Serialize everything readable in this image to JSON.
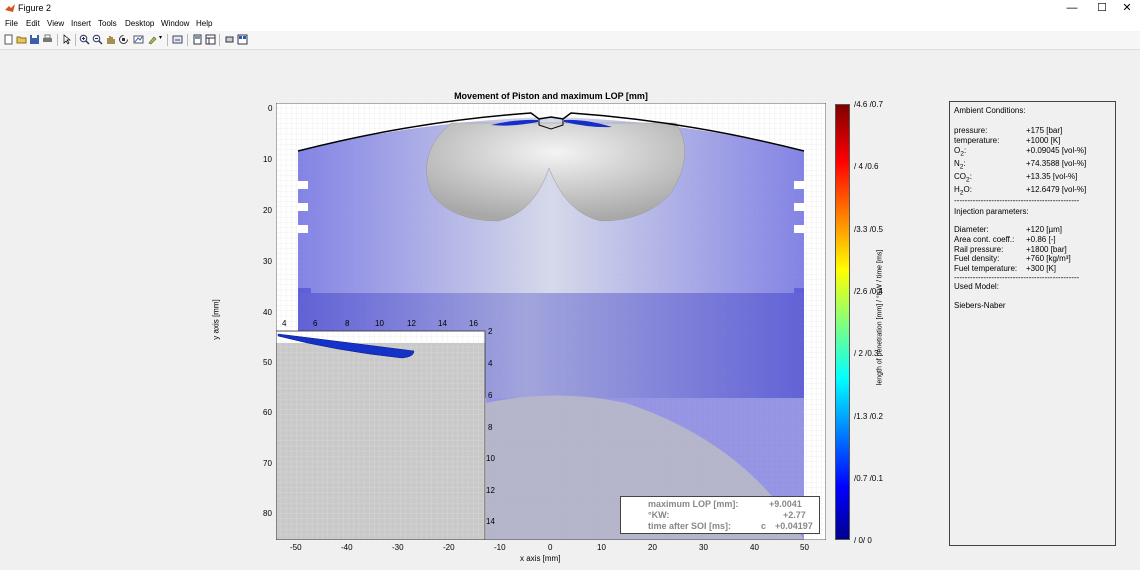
{
  "window": {
    "title": "Figure 2",
    "minimize": "—",
    "maximize": "☐",
    "close": "✕"
  },
  "menu": [
    "File",
    "Edit",
    "View",
    "Insert",
    "Tools",
    "Desktop",
    "Window",
    "Help"
  ],
  "toolbar_icons": [
    "new-figure-icon",
    "open-file-icon",
    "save-icon",
    "print-icon",
    "pointer-icon",
    "zoom-in-icon",
    "zoom-out-icon",
    "pan-icon",
    "rotate-icon",
    "data-cursor-icon",
    "brush-icon",
    "link-plot-icon",
    "hide-plot-tools-icon",
    "show-plot-tools-icon",
    "dock-icon"
  ],
  "figure": {
    "title": "Movement of Piston and maximum LOP [mm]",
    "xlabel": "x axis [mm]",
    "ylabel": "y axis [mm]",
    "xticks": [
      "-50",
      "-40",
      "-30",
      "-20",
      "-10",
      "0",
      "10",
      "20",
      "30",
      "40",
      "50"
    ],
    "yticks": [
      "0",
      "10",
      "20",
      "30",
      "40",
      "50",
      "60",
      "70",
      "80"
    ],
    "inset_xticks": [
      "4",
      "6",
      "8",
      "10",
      "12",
      "14",
      "16"
    ],
    "inset_yticks": [
      "2",
      "4",
      "6",
      "8",
      "10",
      "12",
      "14"
    ]
  },
  "info_box": {
    "rows": [
      {
        "label": "maximum LOP [mm]:",
        "value": "+9.0041"
      },
      {
        "label": "°KW:",
        "value": "+2.77"
      },
      {
        "label": "time after SOI [ms]:",
        "mid": "c",
        "value": "+0.04197"
      }
    ]
  },
  "colorbar": {
    "label": "length of penetration [mm] / °KW / time [ms]",
    "ticks": [
      "/4.6 /0.7",
      "/ 4 /0.6",
      "/3.3 /0.5",
      "/2.6 /0.4",
      "/ 2 /0.3",
      "/1.3 /0.2",
      "/0.7 /0.1",
      "/ 0/ 0"
    ],
    "colors": [
      "#00008f",
      "#0000ff",
      "#00ffff",
      "#ffff00",
      "#ff0000",
      "#800000"
    ]
  },
  "panel": {
    "ambient_title": "Ambient Conditions:",
    "ambient": [
      {
        "label": "pressure:",
        "value": "+175 [bar]"
      },
      {
        "label": "temperature:",
        "value": "+1000 [K]"
      },
      {
        "label": "O",
        "sub": "2",
        "suffix": ":",
        "value": "+0.09045 [vol-%]"
      },
      {
        "label": "N",
        "sub": "2",
        "suffix": ":",
        "value": "+74.3588 [vol-%]"
      },
      {
        "label": "CO",
        "sub": "2",
        "suffix": ":",
        "value": "+13.35 [vol-%]"
      },
      {
        "label": "H",
        "sub": "2",
        "suffix": "O:",
        "value": "+12.6479 [vol-%]"
      }
    ],
    "divider": "-----------------------------------------------",
    "injection_title": "Injection parameters:",
    "injection": [
      {
        "label": "Diameter:",
        "value": "+120 [µm]"
      },
      {
        "label": "Area cont. coeff.:",
        "value": "+0.86 [-]"
      },
      {
        "label": "Rail pressure:",
        "value": "+1800 [bar]"
      },
      {
        "label": "Fuel density:",
        "value": "+760 [kg/m³]"
      },
      {
        "label": "Fuel temperature:",
        "value": "+300 [K]"
      }
    ],
    "model_title": "Used Model:",
    "model": "Siebers-Naber"
  }
}
